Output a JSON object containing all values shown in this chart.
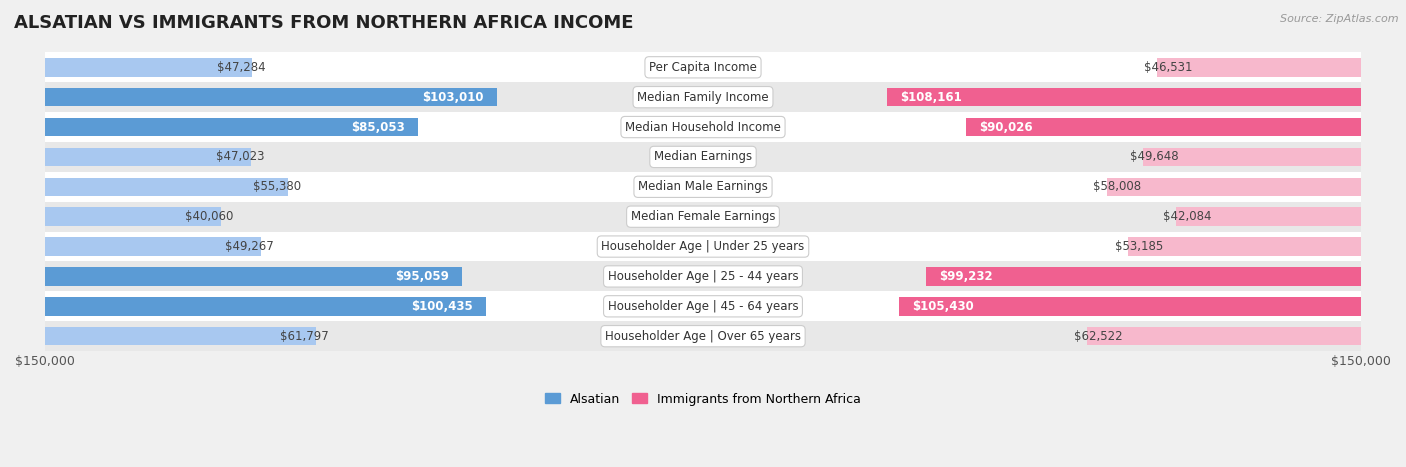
{
  "title": "ALSATIAN VS IMMIGRANTS FROM NORTHERN AFRICA INCOME",
  "source": "Source: ZipAtlas.com",
  "categories": [
    "Per Capita Income",
    "Median Family Income",
    "Median Household Income",
    "Median Earnings",
    "Median Male Earnings",
    "Median Female Earnings",
    "Householder Age | Under 25 years",
    "Householder Age | 25 - 44 years",
    "Householder Age | 45 - 64 years",
    "Householder Age | Over 65 years"
  ],
  "alsatian_values": [
    47284,
    103010,
    85053,
    47023,
    55380,
    40060,
    49267,
    95059,
    100435,
    61797
  ],
  "immigrant_values": [
    46531,
    108161,
    90026,
    49648,
    58008,
    42084,
    53185,
    99232,
    105430,
    62522
  ],
  "alsatian_labels": [
    "$47,284",
    "$103,010",
    "$85,053",
    "$47,023",
    "$55,380",
    "$40,060",
    "$49,267",
    "$95,059",
    "$100,435",
    "$61,797"
  ],
  "immigrant_labels": [
    "$46,531",
    "$108,161",
    "$90,026",
    "$49,648",
    "$58,008",
    "$42,084",
    "$53,185",
    "$99,232",
    "$105,430",
    "$62,522"
  ],
  "blue_light": "#a8c8f0",
  "blue_dark": "#5b9bd5",
  "pink_light": "#f7b8cc",
  "pink_dark": "#f06090",
  "bar_height": 0.62,
  "xlim": 150000,
  "xlabel_left": "$150,000",
  "xlabel_right": "$150,000",
  "legend_alsatian": "Alsatian",
  "legend_immigrant": "Immigrants from Northern Africa",
  "bg_color": "#f0f0f0",
  "row_bg_white": "#ffffff",
  "row_bg_gray": "#e8e8e8",
  "title_fontsize": 13,
  "value_fontsize": 8.5,
  "category_fontsize": 8.5,
  "inside_label_threshold": 70000
}
